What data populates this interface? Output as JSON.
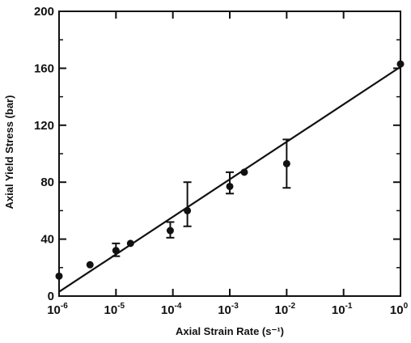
{
  "chart_data": {
    "type": "scatter",
    "xlabel": "Axial Strain Rate (s⁻¹)",
    "ylabel": "Axial Yield Stress (bar)",
    "x_scale": "log",
    "xlim": [
      1e-06,
      1
    ],
    "ylim": [
      0,
      200
    ],
    "x_ticks": [
      {
        "value": 1e-06,
        "base": "10",
        "exp": "-6"
      },
      {
        "value": 1e-05,
        "base": "10",
        "exp": "-5"
      },
      {
        "value": 0.0001,
        "base": "10",
        "exp": "-4"
      },
      {
        "value": 0.001,
        "base": "10",
        "exp": "-3"
      },
      {
        "value": 0.01,
        "base": "10",
        "exp": "-2"
      },
      {
        "value": 0.1,
        "base": "10",
        "exp": "-1"
      },
      {
        "value": 1,
        "base": "10",
        "exp": "0"
      }
    ],
    "y_ticks": [
      0,
      40,
      80,
      120,
      160,
      200
    ],
    "grid": false,
    "points": [
      {
        "x": 1e-06,
        "y": 14
      },
      {
        "x": 3.5e-06,
        "y": 22
      },
      {
        "x": 1e-05,
        "y": 32,
        "err_low": 28,
        "err_high": 37
      },
      {
        "x": 1.8e-05,
        "y": 37
      },
      {
        "x": 9e-05,
        "y": 46,
        "err_low": 41,
        "err_high": 52
      },
      {
        "x": 0.00018,
        "y": 60,
        "err_low": 49,
        "err_high": 80
      },
      {
        "x": 0.001,
        "y": 77,
        "err_low": 72,
        "err_high": 87
      },
      {
        "x": 0.0018,
        "y": 87
      },
      {
        "x": 0.01,
        "y": 93,
        "err_low": 76,
        "err_high": 110
      },
      {
        "x": 1,
        "y": 163
      }
    ],
    "fit_line": [
      {
        "x": 1e-06,
        "y": 3
      },
      {
        "x": 1,
        "y": 161
      }
    ],
    "colors": {
      "ink": "#111111",
      "background": "#ffffff"
    }
  }
}
